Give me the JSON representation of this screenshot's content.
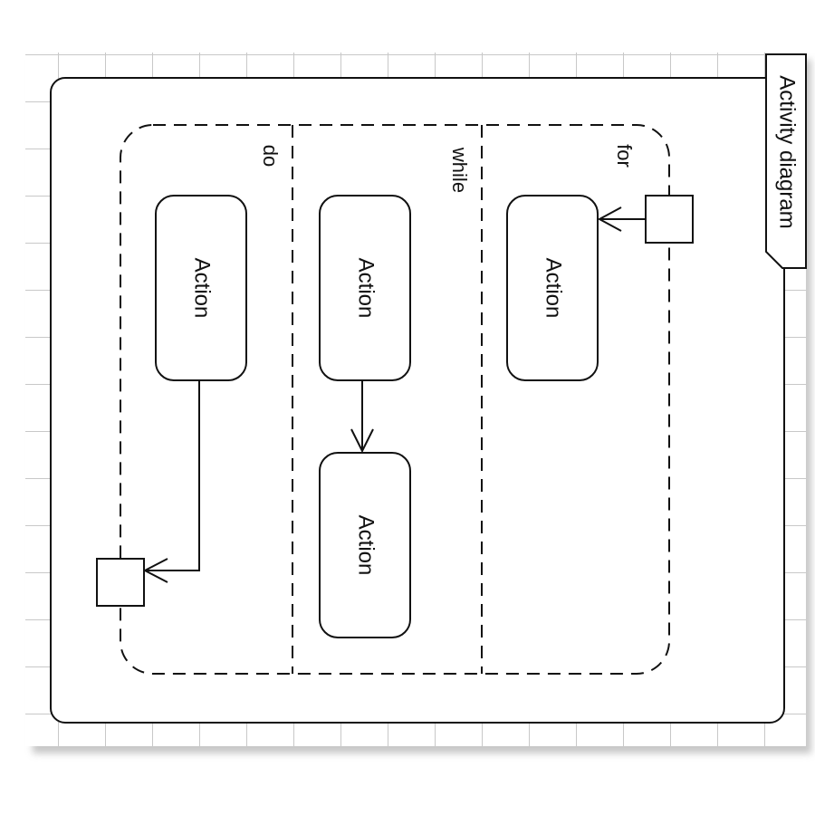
{
  "diagram": {
    "frame_title": "Activity diagram",
    "regions": {
      "do": "do",
      "while": "while",
      "for": "for"
    },
    "actions": {
      "do_action": "Action",
      "while_action_top": "Action",
      "while_action_bottom": "Action",
      "for_action": "Action"
    }
  },
  "colors": {
    "grid_line": "#c8c8c8",
    "stroke": "#111111",
    "background": "#ffffff",
    "shadow": "#9a9a9a"
  }
}
